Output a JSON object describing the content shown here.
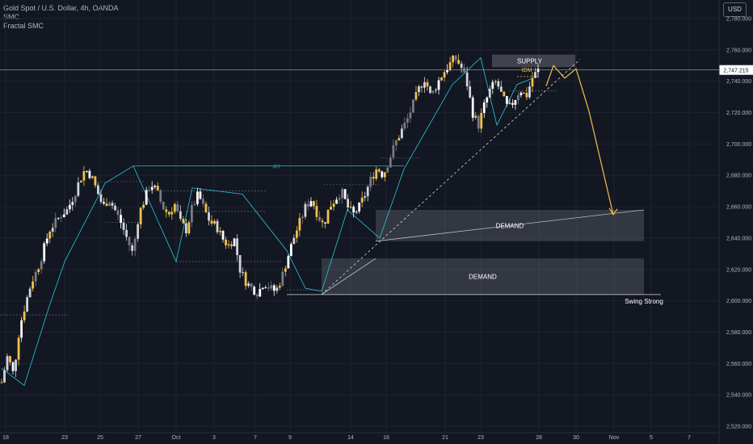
{
  "legend": {
    "symbol": "Gold Spot / U.S. Dollar, 4h, OANDA",
    "indicator1": "SMC",
    "indicator2": "Fractal SMC"
  },
  "currency": "USD",
  "price_label": "2,747.215",
  "chart_data": {
    "type": "candlestick",
    "symbol": "Gold Spot / U.S. Dollar",
    "interval": "4h",
    "source": "OANDA",
    "currency": "USD",
    "ylim": [
      2520,
      2780
    ],
    "y_ticks": [
      "2,520.000",
      "2,540.000",
      "2,560.000",
      "2,580.000",
      "2,600.000",
      "2,620.000",
      "2,640.000",
      "2,660.000",
      "2,680.000",
      "2,700.000",
      "2,720.000",
      "2,740.000",
      "2,760.000",
      "2,780.000"
    ],
    "x_ticks": [
      "18",
      "23",
      "25",
      "27",
      "Oct",
      "3",
      "7",
      "9",
      "14",
      "16",
      "21",
      "23",
      "28",
      "30",
      "Nov",
      "5",
      "7"
    ],
    "last_price": 2747.215,
    "zones": [
      {
        "label": "SUPPLY",
        "top": 2757,
        "bottom": 2749
      },
      {
        "label": "DEMAND",
        "top": 2658,
        "bottom": 2638
      },
      {
        "label": "DEMAND",
        "top": 2627,
        "bottom": 2604
      }
    ],
    "annotations": [
      "4H",
      "IDM",
      "Swing Strong"
    ],
    "path_points": [
      2737,
      2750,
      2742,
      2748,
      2731,
      2746,
      2655
    ],
    "price_path": [
      2548,
      2565,
      2553,
      2583,
      2598,
      2612,
      2620,
      2632,
      2645,
      2650,
      2655,
      2658,
      2666,
      2676,
      2684,
      2680,
      2670,
      2660,
      2665,
      2658,
      2650,
      2640,
      2630,
      2655,
      2665,
      2675,
      2670,
      2660,
      2655,
      2662,
      2650,
      2645,
      2660,
      2668,
      2658,
      2650,
      2648,
      2640,
      2635,
      2640,
      2620,
      2612,
      2608,
      2605,
      2612,
      2608,
      2606,
      2615,
      2628,
      2640,
      2650,
      2660,
      2665,
      2655,
      2648,
      2660,
      2665,
      2670,
      2660,
      2655,
      2660,
      2668,
      2678,
      2685,
      2680,
      2690,
      2700,
      2708,
      2715,
      2725,
      2735,
      2742,
      2730,
      2738,
      2745,
      2750,
      2755,
      2750,
      2740,
      2720,
      2712,
      2725,
      2735,
      2740,
      2730,
      2722,
      2728,
      2735,
      2730,
      2742,
      2747
    ]
  }
}
